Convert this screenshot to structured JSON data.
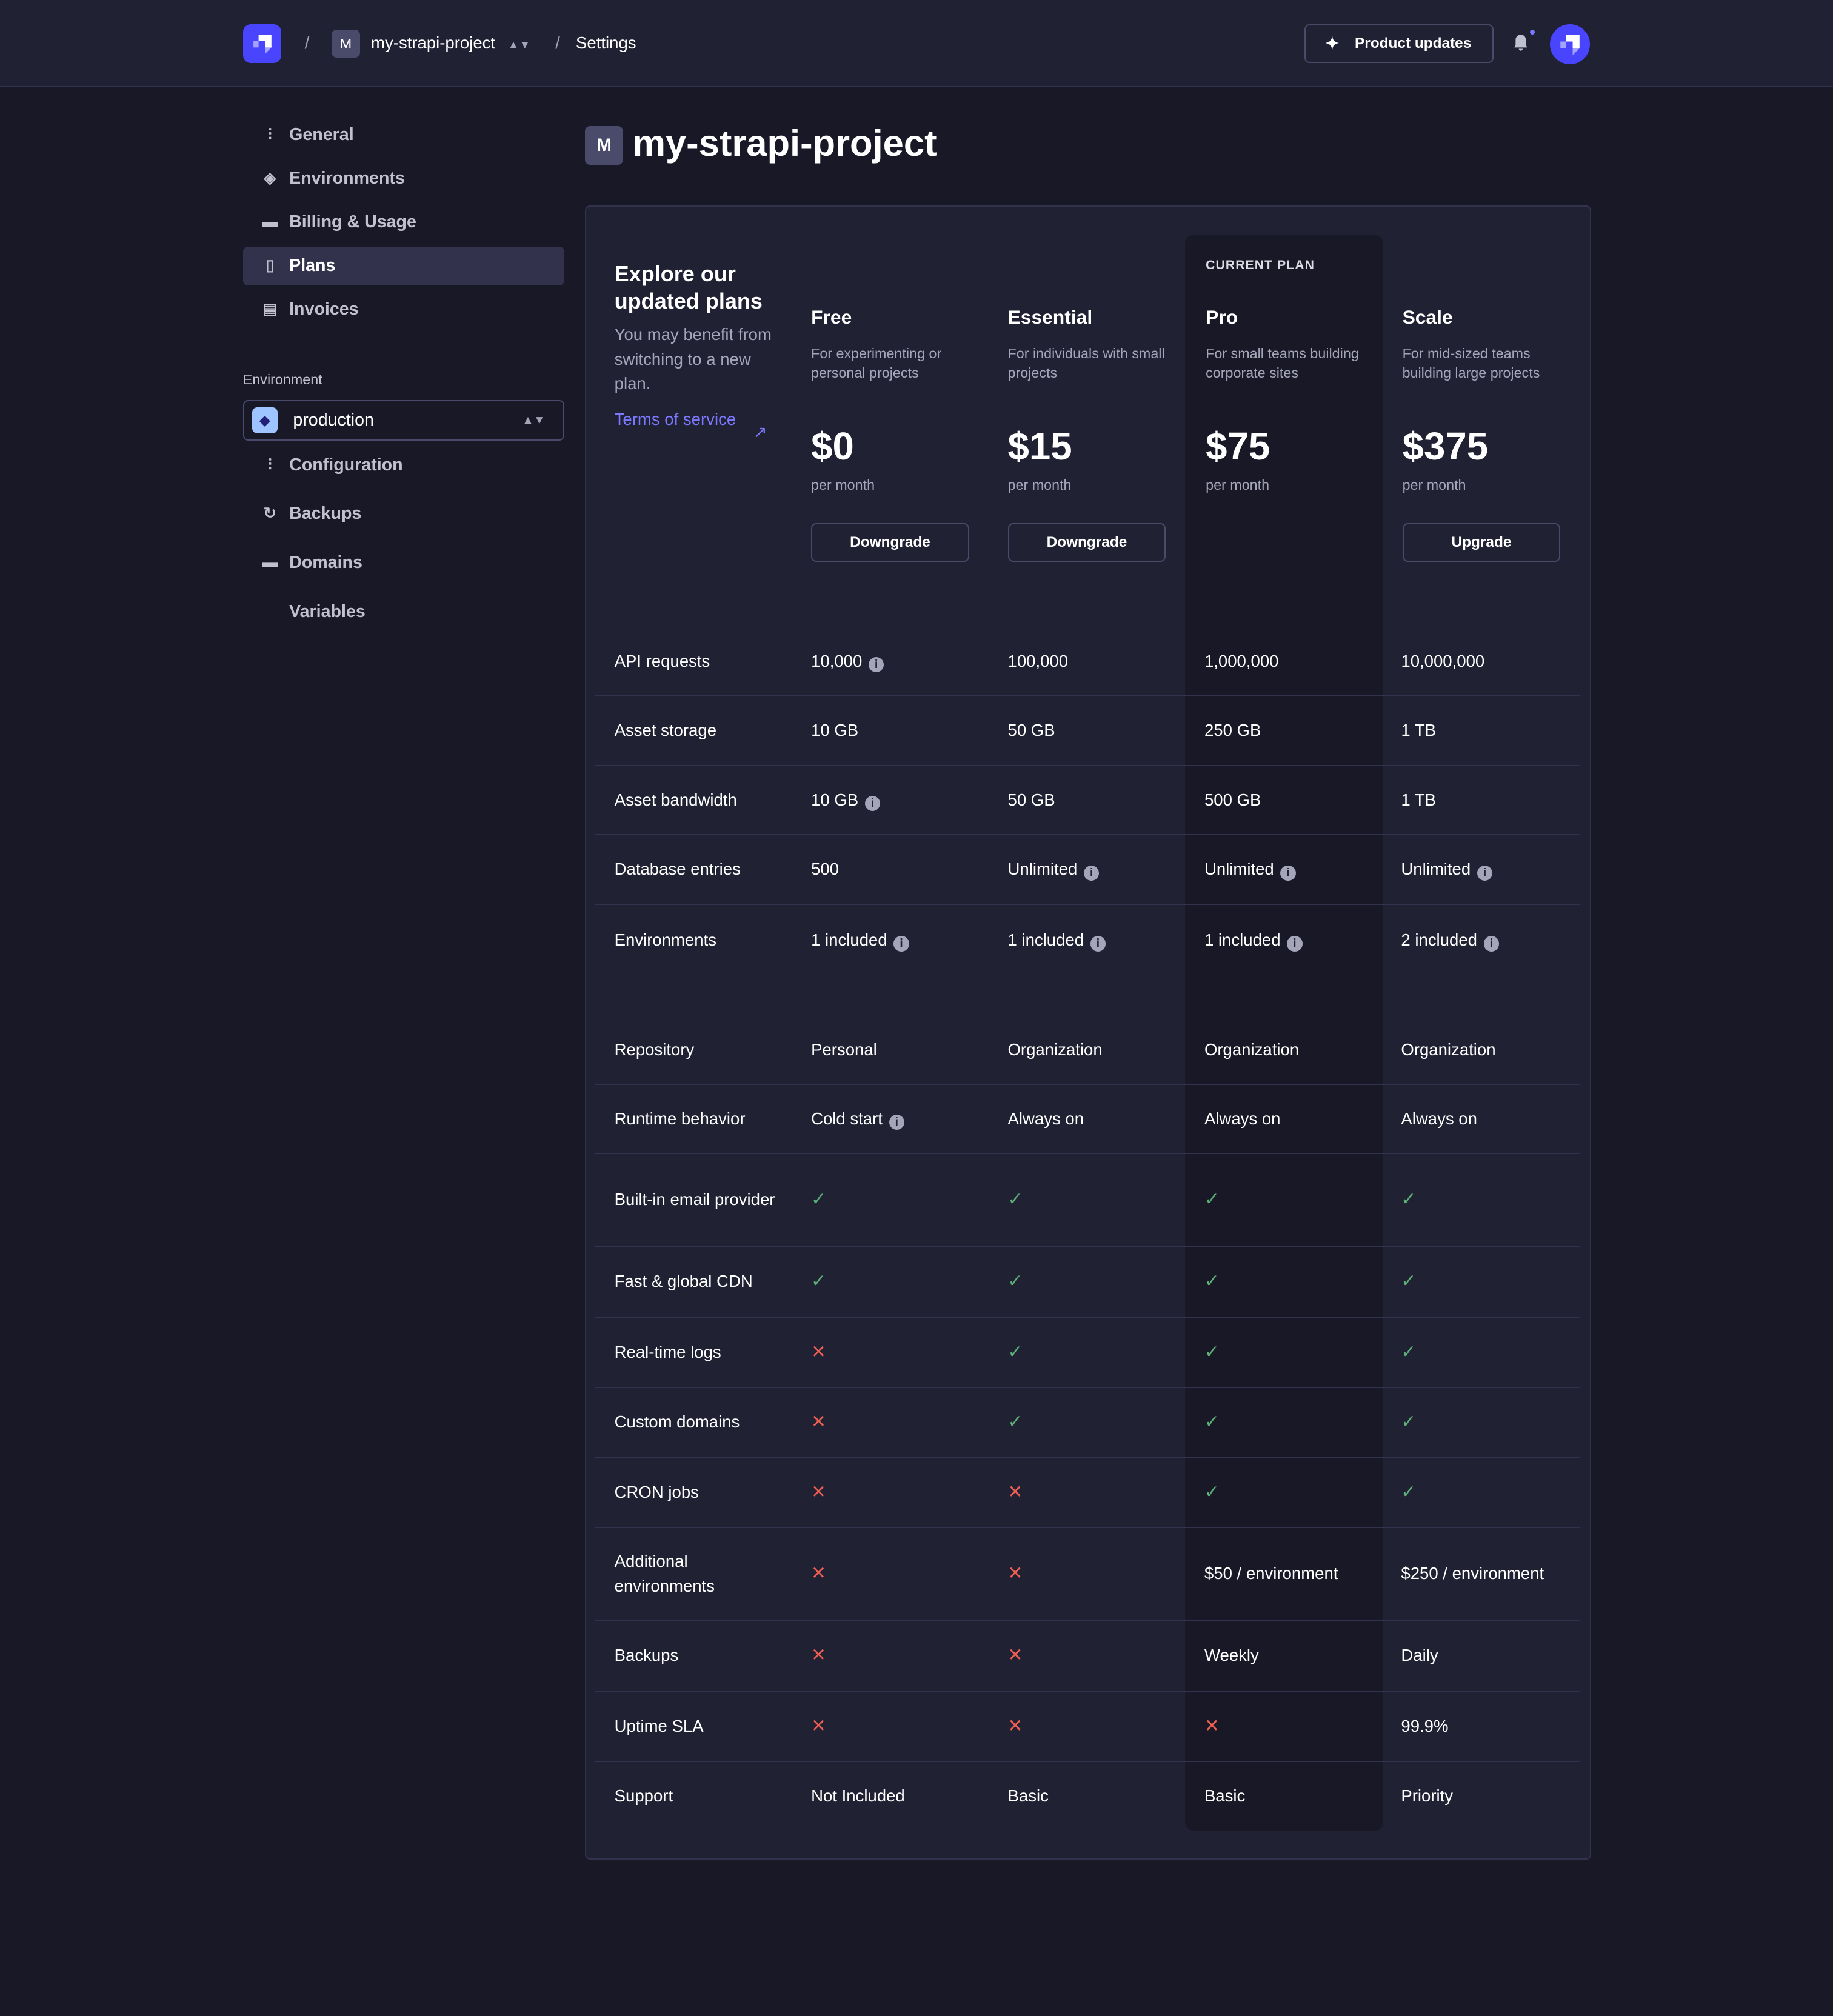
{
  "header": {
    "project_initial": "M",
    "project_name": "my-strapi-project",
    "page": "Settings",
    "product_updates": "Product updates",
    "separator": "/"
  },
  "sidebar": {
    "items": [
      {
        "label": "General",
        "icon": "sliders-icon"
      },
      {
        "label": "Environments",
        "icon": "layers-icon"
      },
      {
        "label": "Billing & Usage",
        "icon": "credit-card-icon"
      },
      {
        "label": "Plans",
        "icon": "book-icon",
        "active": true
      },
      {
        "label": "Invoices",
        "icon": "invoice-icon"
      }
    ],
    "environment_label": "Environment",
    "environment_value": "production",
    "env_items": [
      {
        "label": "Configuration",
        "icon": "sliders-icon"
      },
      {
        "label": "Backups",
        "icon": "refresh-icon"
      },
      {
        "label": "Domains",
        "icon": "card-icon"
      },
      {
        "label": "Variables",
        "icon": "code-icon"
      }
    ]
  },
  "main": {
    "title_initial": "M",
    "title": "my-strapi-project"
  },
  "intro": {
    "title": "Explore our updated plans",
    "text": "You may benefit from switching to a new plan.",
    "tos": "Terms of service"
  },
  "plans": [
    {
      "name": "Free",
      "desc": "For experimenting or personal projects",
      "price": "$0",
      "per": "per month",
      "button": "Downgrade"
    },
    {
      "name": "Essential",
      "desc": "For individuals with small projects",
      "price": "$15",
      "per": "per month",
      "button": "Downgrade"
    },
    {
      "name": "Pro",
      "desc": "For small teams building corporate sites",
      "price": "$75",
      "per": "per month",
      "current": "CURRENT PLAN"
    },
    {
      "name": "Scale",
      "desc": "For mid-sized teams building large projects",
      "price": "$375",
      "per": "per month",
      "button": "Upgrade"
    }
  ],
  "colors": {
    "accent": "#4945ff",
    "link": "#7b79ff",
    "check": "#5cb176",
    "cross": "#ee5e52",
    "background": "#181826",
    "card": "#212134"
  },
  "features": [
    {
      "label": "API requests",
      "values": [
        {
          "t": "10,000",
          "i": true
        },
        {
          "t": "100,000"
        },
        {
          "t": "1,000,000"
        },
        {
          "t": "10,000,000"
        }
      ]
    },
    {
      "label": "Asset storage",
      "values": [
        {
          "t": "10 GB"
        },
        {
          "t": "50 GB"
        },
        {
          "t": "250 GB"
        },
        {
          "t": "1 TB"
        }
      ]
    },
    {
      "label": "Asset bandwidth",
      "values": [
        {
          "t": "10 GB",
          "i": true
        },
        {
          "t": "50 GB"
        },
        {
          "t": "500 GB"
        },
        {
          "t": "1 TB"
        }
      ]
    },
    {
      "label": "Database entries",
      "values": [
        {
          "t": "500"
        },
        {
          "t": "Unlimited",
          "i": true
        },
        {
          "t": "Unlimited",
          "i": true
        },
        {
          "t": "Unlimited",
          "i": true
        }
      ]
    },
    {
      "label": "Environments",
      "values": [
        {
          "t": "1 included",
          "i": true
        },
        {
          "t": "1 included",
          "i": true
        },
        {
          "t": "1 included",
          "i": true
        },
        {
          "t": "2 included",
          "i": true
        }
      ]
    },
    {
      "label": "Repository",
      "values": [
        {
          "t": "Personal"
        },
        {
          "t": "Organization"
        },
        {
          "t": "Organization"
        },
        {
          "t": "Organization"
        }
      ]
    },
    {
      "label": "Runtime behavior",
      "values": [
        {
          "t": "Cold start",
          "i": true
        },
        {
          "t": "Always on"
        },
        {
          "t": "Always on"
        },
        {
          "t": "Always on"
        }
      ]
    },
    {
      "label": "Built-in email provider",
      "values": [
        "check",
        "check",
        "check",
        "check"
      ]
    },
    {
      "label": "Fast & global CDN",
      "values": [
        "check",
        "check",
        "check",
        "check"
      ]
    },
    {
      "label": "Real-time logs",
      "values": [
        "cross",
        "check",
        "check",
        "check"
      ]
    },
    {
      "label": "Custom domains",
      "values": [
        "cross",
        "check",
        "check",
        "check"
      ]
    },
    {
      "label": "CRON jobs",
      "values": [
        "cross",
        "cross",
        "check",
        "check"
      ]
    },
    {
      "label": "Additional environments",
      "values": [
        "cross",
        "cross",
        {
          "t": "$50 / environment"
        },
        {
          "t": "$250 / environment"
        }
      ]
    },
    {
      "label": "Backups",
      "values": [
        "cross",
        "cross",
        {
          "t": "Weekly"
        },
        {
          "t": "Daily"
        }
      ]
    },
    {
      "label": "Uptime SLA",
      "values": [
        "cross",
        "cross",
        "cross",
        {
          "t": "99.9%"
        }
      ]
    },
    {
      "label": "Support",
      "values": [
        {
          "t": "Not Included"
        },
        {
          "t": "Basic"
        },
        {
          "t": "Basic"
        },
        {
          "t": "Priority"
        }
      ]
    }
  ]
}
